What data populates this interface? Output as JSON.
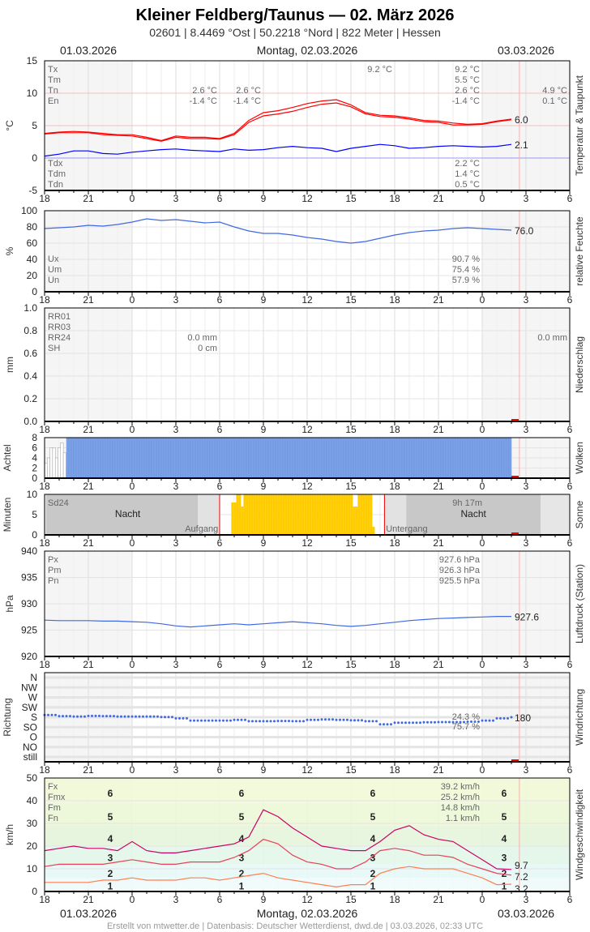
{
  "header": {
    "title": "Kleiner Feldberg/Taunus  —  02. März 2026",
    "subtitle": "02601  |  8.4469 °Ost  |  50.2218 °Nord  |  822 Meter  |  Hessen",
    "date_left": "01.03.2026",
    "date_center": "Montag, 02.03.2026",
    "date_right": "03.03.2026"
  },
  "footer": "Erstellt von mtwetter.de | Datenbasis: Deutscher Wetterdienst, dwd.de | 03.03.2026, 02:33 UTC",
  "colors": {
    "temp": "#ff0000",
    "dew": "#0000ff",
    "humidity": "#4169e1",
    "pressure": "#4169e1",
    "direction": "#4169e1",
    "clouds": "#7ba2e8",
    "sun": "#ffcc00",
    "fx": "#cc0066",
    "fm": "#e8405a",
    "fn": "#ff7f50"
  },
  "chart_data": [
    {
      "id": "temp",
      "type": "line",
      "ylabel": "°C",
      "side_label": "Temperatur & Taupunkt",
      "ylim": [
        -5,
        15
      ],
      "yticks": [
        -5,
        0,
        5,
        10,
        15
      ],
      "x_tick_labels": [
        "18",
        "21",
        "0",
        "3",
        "6",
        "9",
        "12",
        "15",
        "18",
        "21",
        "0",
        "3",
        "6"
      ],
      "times": [
        "01.03. 18:00",
        "19:00",
        "20:00",
        "21:00",
        "22:00",
        "23:00",
        "02.03. 00:00",
        "01:00",
        "02:00",
        "03:00",
        "04:00",
        "05:00",
        "06:00",
        "07:00",
        "08:00",
        "09:00",
        "10:00",
        "11:00",
        "12:00",
        "13:00",
        "14:00",
        "15:00",
        "16:00",
        "17:00",
        "18:00",
        "19:00",
        "20:00",
        "21:00",
        "22:00",
        "23:00",
        "03.03. 00:00",
        "01:00",
        "02:00"
      ],
      "series": [
        {
          "key": "temp",
          "values": [
            3.8,
            4.0,
            4.1,
            4.0,
            3.8,
            3.6,
            3.6,
            3.2,
            2.7,
            3.4,
            3.2,
            3.2,
            3.0,
            3.8,
            5.8,
            7.0,
            7.3,
            7.8,
            8.4,
            8.8,
            9.0,
            8.2,
            7.0,
            6.6,
            6.5,
            6.2,
            5.8,
            5.7,
            5.4,
            5.2,
            5.3,
            5.7,
            6.0
          ]
        },
        {
          "key": "temp",
          "values": [
            3.7,
            3.9,
            3.9,
            3.9,
            3.6,
            3.5,
            3.4,
            3.0,
            2.6,
            3.2,
            3.0,
            3.0,
            2.9,
            3.6,
            5.5,
            6.5,
            6.8,
            7.2,
            7.8,
            8.3,
            8.5,
            7.9,
            6.8,
            6.4,
            6.3,
            6.0,
            5.6,
            5.5,
            5.1,
            5.1,
            5.2,
            5.6,
            5.9
          ]
        },
        {
          "key": "dew",
          "values": [
            0.3,
            0.6,
            1.1,
            1.1,
            0.7,
            0.6,
            0.9,
            1.1,
            1.3,
            1.4,
            1.2,
            1.1,
            1.0,
            1.4,
            1.2,
            1.3,
            1.6,
            1.8,
            1.6,
            1.5,
            1.0,
            1.5,
            1.8,
            2.1,
            1.9,
            1.5,
            1.6,
            1.8,
            1.9,
            1.8,
            1.7,
            1.8,
            2.1
          ]
        }
      ],
      "end_labels": [
        {
          "text": "6.0",
          "key": "temp",
          "value": 6.0
        },
        {
          "text": "2.1",
          "key": "dew",
          "value": 2.1
        }
      ],
      "stats_left": [
        "Tx",
        "Tm",
        "Tn",
        "En"
      ],
      "stats_left2": [
        "Tdx",
        "Tdm",
        "Tdn"
      ],
      "stats": {
        "day1_tn": "2.6 °C",
        "day1_en": "-1.4 °C",
        "day2_tn": "2.6 °C",
        "day2_en": "-1.4 °C",
        "tx_peak": "9.2 °C",
        "tx": "9.2 °C",
        "tm": "5.5 °C",
        "tn": "2.6 °C",
        "en": "-1.4 °C",
        "next_tn": "4.9 °C",
        "next_en": "0.1 °C",
        "tdx": "2.2 °C",
        "tdm": "1.4 °C",
        "tdn": "0.5 °C"
      }
    },
    {
      "id": "hum",
      "type": "line",
      "ylabel": "%",
      "side_label": "relative Feuchte",
      "ylim": [
        0,
        100
      ],
      "yticks": [
        0,
        20,
        40,
        60,
        80,
        100
      ],
      "series": [
        {
          "key": "humidity",
          "values": [
            78,
            79,
            80,
            82,
            81,
            83,
            86,
            90,
            88,
            89,
            87,
            85,
            86,
            80,
            75,
            72,
            72,
            70,
            67,
            65,
            62,
            60,
            62,
            66,
            70,
            73,
            75,
            76,
            78,
            79,
            78,
            77,
            76
          ]
        }
      ],
      "end_labels": [
        {
          "text": "76.0",
          "key": "humidity",
          "value": 76
        }
      ],
      "stats_left": [
        "Ux",
        "Um",
        "Un"
      ],
      "stats": [
        "90.7 %",
        "75.4 %",
        "57.9 %"
      ]
    },
    {
      "id": "rain",
      "type": "bar",
      "ylabel": "mm",
      "side_label": "Niederschlag",
      "ylim": [
        0,
        1
      ],
      "yticks": [
        "0.0",
        "0.2",
        "0.4",
        "0.6",
        "0.8",
        "1.0"
      ],
      "stats_left": [
        "RR01",
        "RR03",
        "RR24",
        "SH"
      ],
      "stats": {
        "rr24": "0.0 mm",
        "sh": "0 cm",
        "next_rr": "0.0 mm"
      }
    },
    {
      "id": "cloud",
      "type": "bar",
      "ylabel": "Achtel",
      "side_label": "Wolken",
      "ylim": [
        0,
        8
      ],
      "yticks": [
        0,
        2,
        4,
        6,
        8
      ],
      "early_values": [
        3,
        4,
        6,
        6,
        4,
        6,
        7,
        5,
        2
      ],
      "overcast_value": 8
    },
    {
      "id": "sun",
      "type": "bar",
      "ylabel": "Minuten",
      "side_label": "Sonne",
      "ylim": [
        0,
        10
      ],
      "yticks": [
        0,
        5,
        10
      ],
      "labels": {
        "sd24": "Sd24",
        "night": "Nacht",
        "sunrise": "Aufgang",
        "sunset": "Untergang",
        "duration": "9h 17m"
      },
      "sunrise": "06:00",
      "sunset": "17:20"
    },
    {
      "id": "press",
      "type": "line",
      "ylabel": "hPa",
      "side_label": "Luftdruck (Station)",
      "ylim": [
        920,
        940
      ],
      "yticks": [
        920,
        925,
        930,
        935,
        940
      ],
      "series": [
        {
          "key": "pressure",
          "values": [
            926.9,
            926.8,
            926.8,
            926.8,
            926.7,
            926.7,
            926.6,
            926.5,
            926.2,
            925.8,
            925.6,
            925.8,
            926.0,
            926.2,
            926.0,
            926.2,
            926.4,
            926.6,
            926.4,
            926.2,
            925.9,
            925.7,
            925.9,
            926.2,
            926.5,
            926.8,
            927.0,
            927.2,
            927.3,
            927.4,
            927.5,
            927.6,
            927.6
          ]
        }
      ],
      "end_labels": [
        {
          "text": "927.6",
          "key": "pressure",
          "value": 927.6
        }
      ],
      "stats_left": [
        "Px",
        "Pm",
        "Pn"
      ],
      "stats": [
        "927.6 hPa",
        "926.3 hPa",
        "925.5 hPa"
      ]
    },
    {
      "id": "dir",
      "type": "scatter",
      "ylabel": "Richtung",
      "side_label": "Windrichtung",
      "yticks": [
        "still",
        "NO",
        "O",
        "SO",
        "S",
        "SW",
        "W",
        "NW",
        "N"
      ],
      "series": [
        {
          "key": "direction",
          "values": [
            190,
            185,
            183,
            186,
            185,
            183,
            183,
            183,
            181,
            175,
            165,
            165,
            165,
            168,
            162,
            162,
            163,
            162,
            168,
            170,
            168,
            166,
            162,
            148,
            155,
            155,
            157,
            158,
            158,
            160,
            165,
            175,
            180
          ]
        }
      ],
      "end_labels": [
        {
          "text": "180",
          "key": "direction",
          "value": 180
        }
      ],
      "stats": [
        "24.3 %",
        "75.7 %"
      ]
    },
    {
      "id": "wind",
      "type": "line",
      "ylabel": "km/h",
      "side_label": "Windgeschwindigkeit",
      "ylim": [
        0,
        50
      ],
      "yticks": [
        0,
        10,
        20,
        30,
        40,
        50
      ],
      "beaufort": [
        {
          "bft": "1",
          "from": 1,
          "to": 5
        },
        {
          "bft": "2",
          "from": 6,
          "to": 11
        },
        {
          "bft": "3",
          "from": 12,
          "to": 19
        },
        {
          "bft": "4",
          "from": 20,
          "to": 28
        },
        {
          "bft": "5",
          "from": 29,
          "to": 38
        },
        {
          "bft": "6",
          "from": 39,
          "to": 49
        }
      ],
      "series": [
        {
          "name": "Fx",
          "key": "fx",
          "values": [
            18,
            19,
            20,
            19,
            19,
            18,
            22,
            18,
            17,
            17,
            18,
            19,
            20,
            21,
            24,
            36,
            33,
            28,
            24,
            20,
            19,
            18,
            18,
            22,
            27,
            29,
            25,
            23,
            22,
            18,
            14,
            10,
            9.7
          ]
        },
        {
          "name": "Fm",
          "key": "fm",
          "values": [
            11,
            12,
            12,
            12,
            12,
            13,
            14,
            13,
            12,
            12,
            13,
            13,
            13,
            15,
            18,
            23,
            21,
            16,
            13,
            12,
            10,
            10,
            13,
            18,
            19,
            18,
            16,
            16,
            15,
            12,
            10,
            8,
            7.2
          ]
        },
        {
          "name": "Fn",
          "key": "fn",
          "values": [
            4,
            4,
            4,
            4,
            5,
            5,
            6,
            5,
            5,
            5,
            6,
            6,
            5,
            6,
            7,
            8,
            6,
            5,
            4,
            3,
            2,
            3,
            3,
            8,
            10,
            11,
            10,
            10,
            10,
            8,
            6,
            3,
            3.2
          ]
        }
      ],
      "end_labels": [
        {
          "text": "9.7",
          "key": "fx",
          "value": 9.7
        },
        {
          "text": "7.2",
          "key": "fm",
          "value": 7.2
        },
        {
          "text": "3.2",
          "key": "fn",
          "value": 3.2
        }
      ],
      "stats_left": [
        {
          "t": "Fx",
          "key": "fx"
        },
        {
          "t": "Fmx",
          "key": "gray"
        },
        {
          "t": "Fm",
          "key": "fm"
        },
        {
          "t": "Fn",
          "key": "fn"
        }
      ],
      "stats": [
        "39.2 km/h",
        "25.2 km/h",
        "14.8 km/h",
        "1.1 km/h"
      ]
    }
  ]
}
